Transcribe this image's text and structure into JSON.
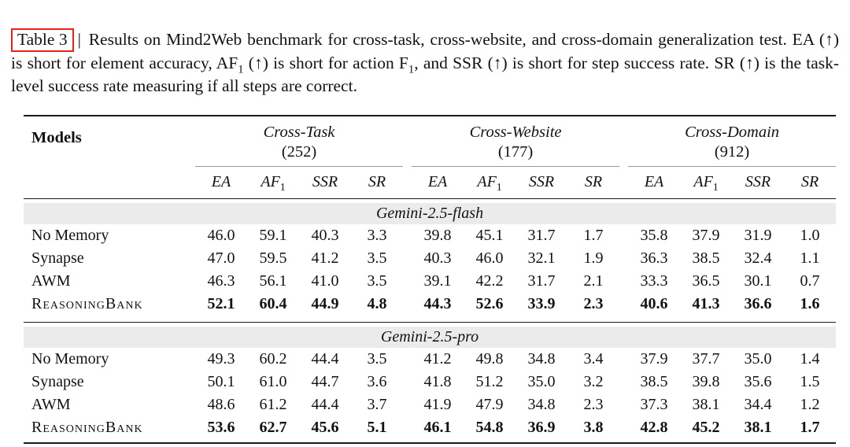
{
  "colors": {
    "highlight_red": "#e8231e",
    "section_band": "#ebebeb",
    "rule_dark": "#1a1a1a",
    "rule_gray": "#999999"
  },
  "caption": {
    "label": "Table 3",
    "separator": "|",
    "parts": [
      {
        "text": "Results on Mind2Web benchmark for cross-task, cross-website, and cross-domain generalization test. EA (↑) is short for element accuracy, AF",
        "sub": false
      },
      {
        "text": "1",
        "sub": true
      },
      {
        "text": " (↑) is short for action F",
        "sub": false
      },
      {
        "text": "1",
        "sub": true
      },
      {
        "text": ", and SSR (↑) is short for step success rate. SR (↑) is the task-level success rate measuring if all steps are correct.",
        "sub": false
      }
    ]
  },
  "table": {
    "models_header": "Models",
    "groups": [
      {
        "name": "Cross-Task",
        "count": "(252)",
        "subcols": [
          {
            "label": "EA"
          },
          {
            "label": "AF",
            "sub": "1"
          },
          {
            "label": "SSR"
          },
          {
            "label": "SR"
          }
        ]
      },
      {
        "name": "Cross-Website",
        "count": "(177)",
        "subcols": [
          {
            "label": "EA"
          },
          {
            "label": "AF",
            "sub": "1"
          },
          {
            "label": "SSR"
          },
          {
            "label": "SR"
          }
        ]
      },
      {
        "name": "Cross-Domain",
        "count": "(912)",
        "subcols": [
          {
            "label": "EA"
          },
          {
            "label": "AF",
            "sub": "1"
          },
          {
            "label": "SSR"
          },
          {
            "label": "SR"
          }
        ]
      }
    ],
    "sections": [
      {
        "title": "Gemini-2.5-flash",
        "rows": [
          {
            "model": "No Memory",
            "smallcaps": false,
            "bold": false,
            "values": [
              "46.0",
              "59.1",
              "40.3",
              "3.3",
              "39.8",
              "45.1",
              "31.7",
              "1.7",
              "35.8",
              "37.9",
              "31.9",
              "1.0"
            ]
          },
          {
            "model": "Synapse",
            "smallcaps": false,
            "bold": false,
            "values": [
              "47.0",
              "59.5",
              "41.2",
              "3.5",
              "40.3",
              "46.0",
              "32.1",
              "1.9",
              "36.3",
              "38.5",
              "32.4",
              "1.1"
            ]
          },
          {
            "model": "AWM",
            "smallcaps": false,
            "bold": false,
            "values": [
              "46.3",
              "56.1",
              "41.0",
              "3.5",
              "39.1",
              "42.2",
              "31.7",
              "2.1",
              "33.3",
              "36.5",
              "30.1",
              "0.7"
            ]
          },
          {
            "model": "ReasoningBank",
            "smallcaps": true,
            "bold": true,
            "values": [
              "52.1",
              "60.4",
              "44.9",
              "4.8",
              "44.3",
              "52.6",
              "33.9",
              "2.3",
              "40.6",
              "41.3",
              "36.6",
              "1.6"
            ]
          }
        ]
      },
      {
        "title": "Gemini-2.5-pro",
        "rows": [
          {
            "model": "No Memory",
            "smallcaps": false,
            "bold": false,
            "values": [
              "49.3",
              "60.2",
              "44.4",
              "3.5",
              "41.2",
              "49.8",
              "34.8",
              "3.4",
              "37.9",
              "37.7",
              "35.0",
              "1.4"
            ]
          },
          {
            "model": "Synapse",
            "smallcaps": false,
            "bold": false,
            "values": [
              "50.1",
              "61.0",
              "44.7",
              "3.6",
              "41.8",
              "51.2",
              "35.0",
              "3.2",
              "38.5",
              "39.8",
              "35.6",
              "1.5"
            ]
          },
          {
            "model": "AWM",
            "smallcaps": false,
            "bold": false,
            "values": [
              "48.6",
              "61.2",
              "44.4",
              "3.7",
              "41.9",
              "47.9",
              "34.8",
              "2.3",
              "37.3",
              "38.1",
              "34.4",
              "1.2"
            ]
          },
          {
            "model": "ReasoningBank",
            "smallcaps": true,
            "bold": true,
            "values": [
              "53.6",
              "62.7",
              "45.6",
              "5.1",
              "46.1",
              "54.8",
              "36.9",
              "3.8",
              "42.8",
              "45.2",
              "38.1",
              "1.7"
            ]
          }
        ]
      }
    ]
  }
}
